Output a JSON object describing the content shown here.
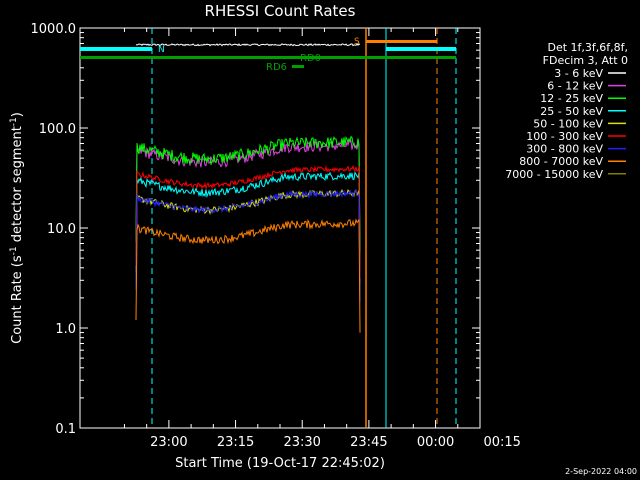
{
  "chart_data": {
    "type": "line",
    "title": "RHESSI Count Rates",
    "xlabel": "Start Time (19-Oct-17 22:45:02)",
    "ylabel_main": "Count Rate (s",
    "ylabel_sup1": "-1",
    "ylabel_mid": " detector segment",
    "ylabel_sup2": "-1",
    "ylabel_end": ")",
    "y_scale": "log",
    "ylim": [
      0.1,
      1000
    ],
    "xlim_minutes": [
      -20,
      70
    ],
    "y_ticks": [
      {
        "value": 1000,
        "label": "1000.0"
      },
      {
        "value": 100,
        "label": "100.0"
      },
      {
        "value": 10,
        "label": "10.0"
      },
      {
        "value": 1,
        "label": "1.0"
      },
      {
        "value": 0.1,
        "label": "0.1"
      }
    ],
    "x_ticks": [
      {
        "value": 0,
        "label": "23:00"
      },
      {
        "value": 15,
        "label": "23:15"
      },
      {
        "value": 30,
        "label": "23:30"
      },
      {
        "value": 45,
        "label": "23:45"
      },
      {
        "value": 60,
        "label": "00:00"
      },
      {
        "value": 75,
        "label": "00:15"
      }
    ],
    "legend_header": [
      "Det 1f,3f,6f,8f,",
      "FDecim 3, Att 0"
    ],
    "legend_placement": "top-right",
    "series": [
      {
        "name": "3 - 6 keV",
        "color": "#ffffff",
        "approx_level": 680
      },
      {
        "name": "6 - 12 keV",
        "color": "#e040e0",
        "approx_level": 60
      },
      {
        "name": "12 - 25 keV",
        "color": "#00ff00",
        "approx_level": 65
      },
      {
        "name": "25 - 50 keV",
        "color": "#00ffff",
        "approx_level": 30
      },
      {
        "name": "50 - 100 keV",
        "color": "#e0e000",
        "approx_level": 20
      },
      {
        "name": "100 - 300 keV",
        "color": "#ff0000",
        "approx_level": 35
      },
      {
        "name": "300 - 800 keV",
        "color": "#2020ff",
        "approx_level": 20
      },
      {
        "name": "800 - 7000 keV",
        "color": "#ff8000",
        "approx_level": 10
      },
      {
        "name": "7000 - 15000 keV",
        "color": "#808000",
        "approx_level": null
      }
    ],
    "flags": [
      {
        "label": "N",
        "color": "#00ffff"
      },
      {
        "label": "S",
        "color": "#ff8000"
      },
      {
        "label": "RD0",
        "color": "#00a000"
      },
      {
        "label": "RD6",
        "color": "#00a000"
      }
    ],
    "footer_date": "2-Sep-2022 04:00"
  }
}
